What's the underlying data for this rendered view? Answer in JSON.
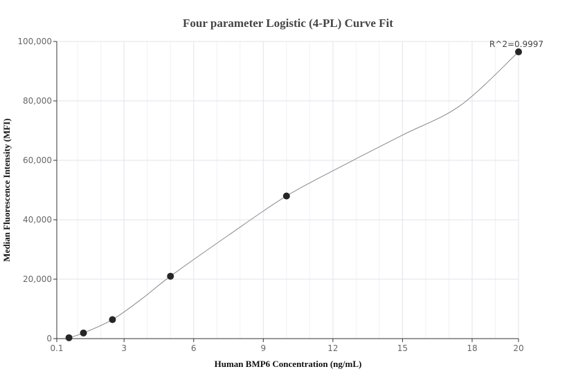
{
  "chart_data": {
    "type": "scatter",
    "title": "Four parameter Logistic (4-PL) Curve Fit",
    "xlabel": "Human BMP6 Concentration (ng/mL)",
    "ylabel": "Median Fluorescence Intensity (MFI)",
    "xlim": [
      0.1,
      20
    ],
    "ylim": [
      0,
      100000
    ],
    "x_ticks": [
      0.1,
      3,
      6,
      9,
      12,
      15,
      18,
      20
    ],
    "x_tick_labels": [
      "0.1",
      "3",
      "6",
      "9",
      "12",
      "15",
      "18",
      "20"
    ],
    "y_ticks": [
      0,
      20000,
      40000,
      60000,
      80000,
      100000
    ],
    "y_tick_labels": [
      "0",
      "20,000",
      "40,000",
      "60,000",
      "80,000",
      "100,000"
    ],
    "grid": true,
    "series": [
      {
        "points": [
          {
            "x": 0.625,
            "y": 300
          },
          {
            "x": 1.25,
            "y": 1900
          },
          {
            "x": 2.5,
            "y": 6400
          },
          {
            "x": 5,
            "y": 21000
          },
          {
            "x": 10,
            "y": 48000
          },
          {
            "x": 20,
            "y": 96500
          }
        ],
        "color": "#262626"
      }
    ],
    "fit_curve": {
      "points": [
        {
          "x": 0.625,
          "y": 300
        },
        {
          "x": 1.25,
          "y": 1900
        },
        {
          "x": 2.5,
          "y": 6400
        },
        {
          "x": 3.75,
          "y": 13300
        },
        {
          "x": 5,
          "y": 21000
        },
        {
          "x": 7.5,
          "y": 34800
        },
        {
          "x": 10,
          "y": 48000
        },
        {
          "x": 12.5,
          "y": 58500
        },
        {
          "x": 15,
          "y": 68500
        },
        {
          "x": 17.5,
          "y": 78500
        },
        {
          "x": 20,
          "y": 96500
        }
      ],
      "color": "#888888"
    },
    "annotation": "R^2=0.9997"
  }
}
